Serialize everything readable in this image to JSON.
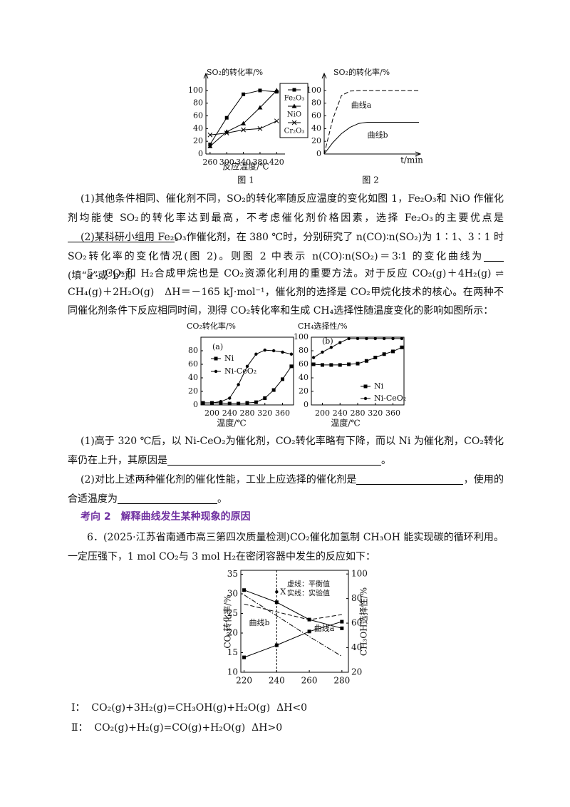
{
  "chart_data": [
    {
      "type": "line",
      "ylabel": "SO₂的转化率/%",
      "xlabel": "反应温度/℃",
      "caption": "图 1",
      "x": [
        260,
        300,
        340,
        380,
        420
      ],
      "xlim": [
        250,
        440
      ],
      "xticks": [
        260,
        300,
        340,
        380,
        420
      ],
      "ylim": [
        0,
        110
      ],
      "yticks": [
        0,
        20,
        40,
        60,
        80,
        100
      ],
      "legend": "right",
      "series": [
        {
          "name": "Fe₂O₃",
          "marker": "square",
          "values": [
            15,
            57,
            94,
            100,
            98
          ]
        },
        {
          "name": "NiO",
          "marker": "triangle",
          "values": [
            12,
            35,
            48,
            73,
            100
          ]
        },
        {
          "name": "Cr₂O₃",
          "marker": "cross",
          "values": [
            30,
            33,
            38,
            40,
            52
          ]
        }
      ]
    },
    {
      "type": "line",
      "ylabel": "SO₂的转化率/%",
      "xlabel": "t/min",
      "caption": "图 2",
      "ylim": [
        0,
        110
      ],
      "yticks": [
        0,
        20,
        40,
        60,
        80,
        100
      ],
      "legend": "inline",
      "series": [
        {
          "name": "曲线a",
          "dash": "dash",
          "values": [
            0,
            55,
            92,
            99,
            100,
            100,
            100,
            100,
            100,
            100,
            100,
            100
          ]
        },
        {
          "name": "曲线b",
          "values": [
            0,
            18,
            32,
            42,
            48,
            50,
            50,
            50,
            50,
            50,
            50,
            50
          ]
        }
      ]
    },
    {
      "type": "line",
      "label": "(a)",
      "ylabel": "CO₂转化率/%",
      "xlabel": "温度/℃",
      "x": [
        180,
        200,
        220,
        240,
        260,
        280,
        300,
        320,
        340,
        360,
        380
      ],
      "xlim": [
        175,
        385
      ],
      "xticks": [
        200,
        240,
        280,
        320,
        360
      ],
      "ylim": [
        0,
        100
      ],
      "yticks": [
        0,
        20,
        40,
        60,
        80
      ],
      "legend": "upper left",
      "series": [
        {
          "name": "Ni",
          "marker": "square",
          "values": [
            3,
            3,
            3,
            2,
            2,
            3,
            4,
            10,
            22,
            38,
            57
          ]
        },
        {
          "name": "Ni-CeO₂",
          "marker": "dot",
          "values": [
            3,
            3,
            5,
            10,
            30,
            57,
            75,
            81,
            80,
            78,
            75
          ]
        }
      ]
    },
    {
      "type": "line",
      "label": "(b)",
      "ylabel": "CH₄选择性/%",
      "xlabel": "温度/℃",
      "x": [
        180,
        200,
        220,
        240,
        260,
        280,
        300,
        320,
        340,
        360,
        380
      ],
      "xlim": [
        175,
        385
      ],
      "xticks": [
        200,
        240,
        280,
        320,
        360
      ],
      "ylim": [
        0,
        100
      ],
      "yticks": [
        0,
        20,
        40,
        60,
        80,
        100
      ],
      "legend": "lower right",
      "series": [
        {
          "name": "Ni",
          "marker": "square",
          "values": [
            60,
            59,
            59,
            59,
            60,
            61,
            65,
            70,
            75,
            79,
            85
          ]
        },
        {
          "name": "Ni-CeO₂",
          "marker": "dot",
          "values": [
            70,
            78,
            85,
            92,
            98,
            98,
            98,
            98,
            98,
            98,
            98
          ]
        }
      ]
    },
    {
      "type": "line",
      "ylabel": "CO₂转化率/%",
      "y2label": "CH₃OH选择性/%",
      "x": [
        220,
        240,
        260,
        280
      ],
      "xlim": [
        218,
        284
      ],
      "xticks": [
        220,
        240,
        260,
        280
      ],
      "ylim": [
        10,
        36
      ],
      "yticks": [
        10,
        15,
        20,
        25,
        30,
        35
      ],
      "y2lim": [
        20,
        103
      ],
      "y2ticks": [
        20,
        40,
        60,
        80,
        100
      ],
      "vline": 240,
      "annotations": [
        "虚线：平衡值",
        "实线：实验值"
      ],
      "point": {
        "label": "X",
        "x": 240,
        "y": 30.5
      },
      "legend": "inline",
      "series": [
        {
          "marker": "square",
          "axis": "y2",
          "values": [
            86.9,
            77,
            62.9,
            55.8
          ]
        },
        {
          "marker": "square",
          "values": [
            13.8,
            16.9,
            20.4,
            22.9
          ]
        },
        {
          "name": "曲线b",
          "dash": "dash",
          "values": [
            27.4,
            25.4,
            23.4,
            24.7
          ]
        },
        {
          "name": "曲线a",
          "dash": "dashdot",
          "axis": "y2",
          "values": [
            83,
            66,
            49,
            33
          ]
        }
      ]
    }
  ],
  "text": {
    "p1": [
      "(1)其他条件相同、催化剂不同，SO₂的转化率随反应温度的变化如图 1，Fe₂O₃和 NiO 作催化剂均能使 SO₂的转化率达到最高，不考虑催化剂价格因素，选择 Fe₂O₃的主要优点是",
      "。"
    ],
    "p2": [
      "(2)某科研小组用 Fe₂O₃作催化剂，在 380 ℃时，分别研究了 n(CO)∶n(SO₂)为 1∶1、3∶1 时 SO₂转化率的变化情况(图 2)。则图 2 中表示 n(CO)∶n(SO₂)＝3∶1 的变化曲线为",
      "(填“a”或“b”)。"
    ],
    "p3": "5．CO₂和 H₂合成甲烷也是 CO₂资源化利用的重要方法。对于反应 CO₂(g)＋4H₂(g) ⇌ CH₄(g)＋2H₂O(g)　ΔH＝－165 kJ·mol⁻¹，催化剂的选择是 CO₂甲烷化技术的核心。在两种不同催化剂条件下反应相同时间，测得 CO₂转化率和生成 CH₄选择性随温度变化的影响如图所示：",
    "p4": [
      "(1)高于 320 ℃后，以 Ni-CeO₂为催化剂，CO₂转化率略有下降，而以 Ni 为催化剂，CO₂转化率仍在上升，其原因是",
      "。"
    ],
    "p5": [
      "(2)对比上述两种催化剂的催化性能，工业上应选择的催化剂是",
      "，使用的合适温度为",
      "。"
    ],
    "heading": "考向 2　解释曲线发生某种现象的原因",
    "p6": "6．(2025·江苏省南通市高三第四次质量检测)CO₂催化加氢制 CH₃OH 能实现碳的循环利用。一定压强下，1 mol CO₂与 3 mol H₂在密闭容器中发生的反应如下：",
    "r1": "Ⅰ：  CO₂(g)+3H₂(g)=CH₃OH(g)+H₂O(g)  ΔH<0",
    "r2": "Ⅱ：  CO₂(g)+H₂(g)=CO(g)+H₂O(g)  ΔH>0"
  }
}
